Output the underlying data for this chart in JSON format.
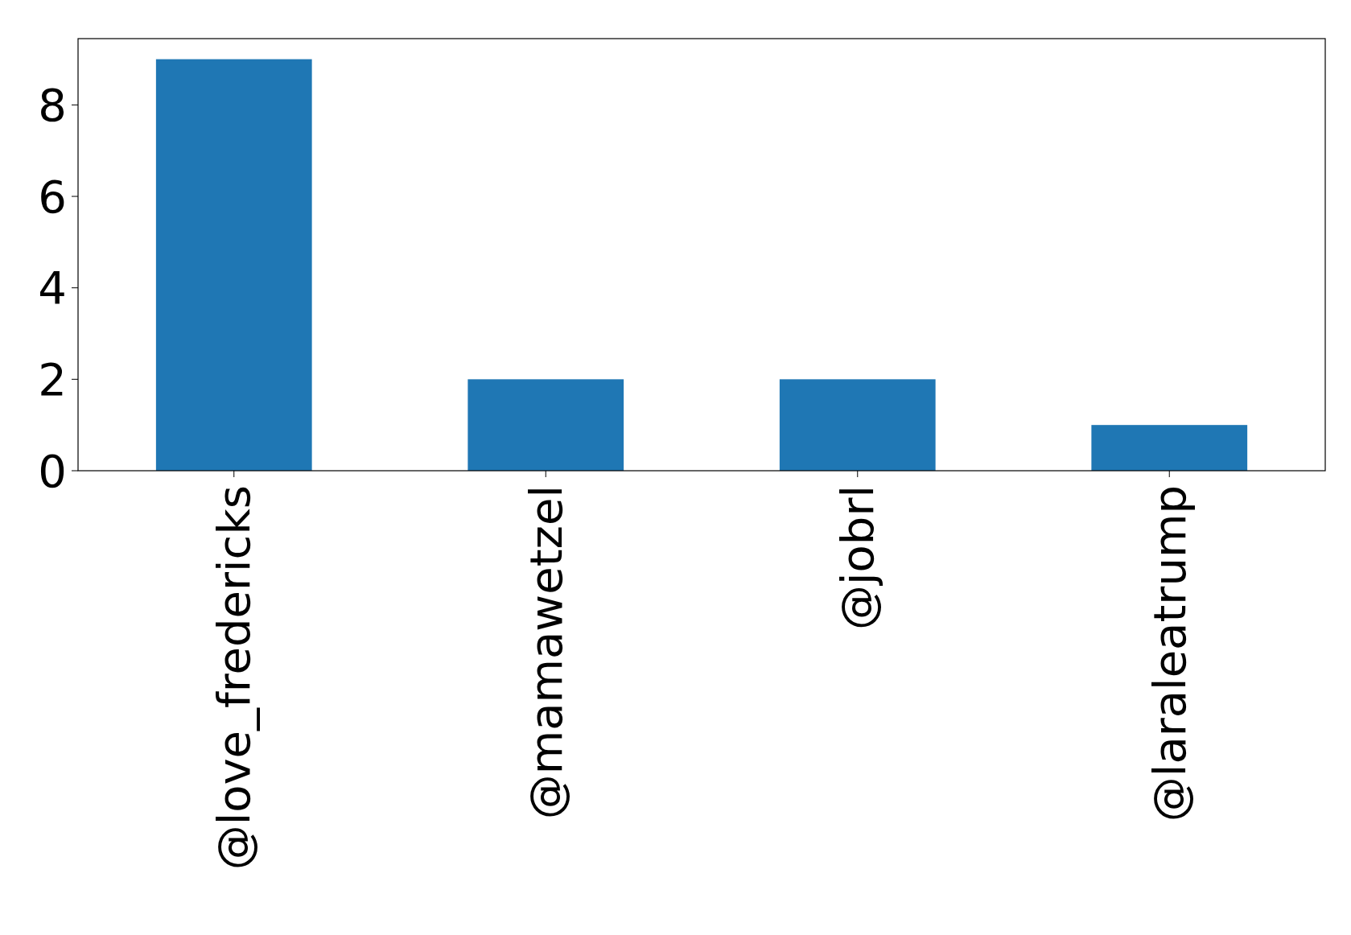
{
  "chart_data": {
    "type": "bar",
    "categories": [
      "@love_fredericks",
      "@mamawetzel",
      "@jobrl",
      "@laraleatrump"
    ],
    "values": [
      9,
      2,
      2,
      1
    ],
    "color": "#1f77b4",
    "ylim": [
      0,
      9.45
    ],
    "yticks": [
      0,
      2,
      4,
      6,
      8
    ],
    "grid": false
  }
}
